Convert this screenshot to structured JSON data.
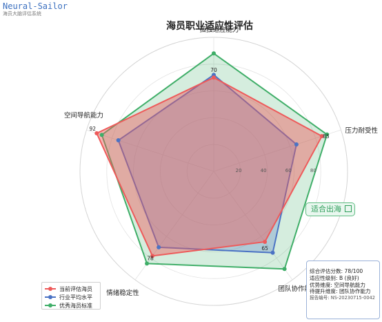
{
  "brand": {
    "name": "Neural-Sailor",
    "subtitle": "海员大脑评估系统"
  },
  "colors": {
    "current": "#ee5a5a",
    "average": "#4b73c4",
    "excellent": "#3fae68"
  },
  "chart_data": {
    "type": "radar",
    "title": "海员职业适应性评估",
    "axes": [
      "孤独适应能力",
      "压力耐受性",
      "团队协作能力",
      "情绪稳定性",
      "空间导航能力"
    ],
    "radial_range": [
      0,
      100
    ],
    "radial_ticks": [
      20,
      40,
      60,
      80
    ],
    "grid": true,
    "legend_position": "bottom-left",
    "series": [
      {
        "name": "当前评估海员",
        "values": [
          70,
          85,
          65,
          78,
          92
        ],
        "color": "#ee5a5a"
      },
      {
        "name": "行业平均水平",
        "values": [
          72,
          65,
          75,
          70,
          75
        ],
        "color": "#4b73c4"
      },
      {
        "name": "优秀海员标准",
        "values": [
          88,
          89,
          90,
          85,
          88
        ],
        "color": "#3fae68"
      }
    ],
    "point_labels": [
      {
        "axis": "孤独适应能力",
        "text": "70"
      },
      {
        "axis": "压力耐受性",
        "text": "85"
      },
      {
        "axis": "团队协作能力",
        "text": "65"
      },
      {
        "axis": "情绪稳定性",
        "text": "78"
      },
      {
        "axis": "空间导航能力",
        "text": "92"
      }
    ]
  },
  "badge": {
    "text": "适合出海"
  },
  "summary": {
    "lines": [
      "综合评估分数: 78/100",
      "适应性级别: B (良好)",
      "优势维度: 空间导航能力",
      "待提升维度: 团队协作能力"
    ],
    "report_id": "报告编号: NS-20230715-0042"
  }
}
